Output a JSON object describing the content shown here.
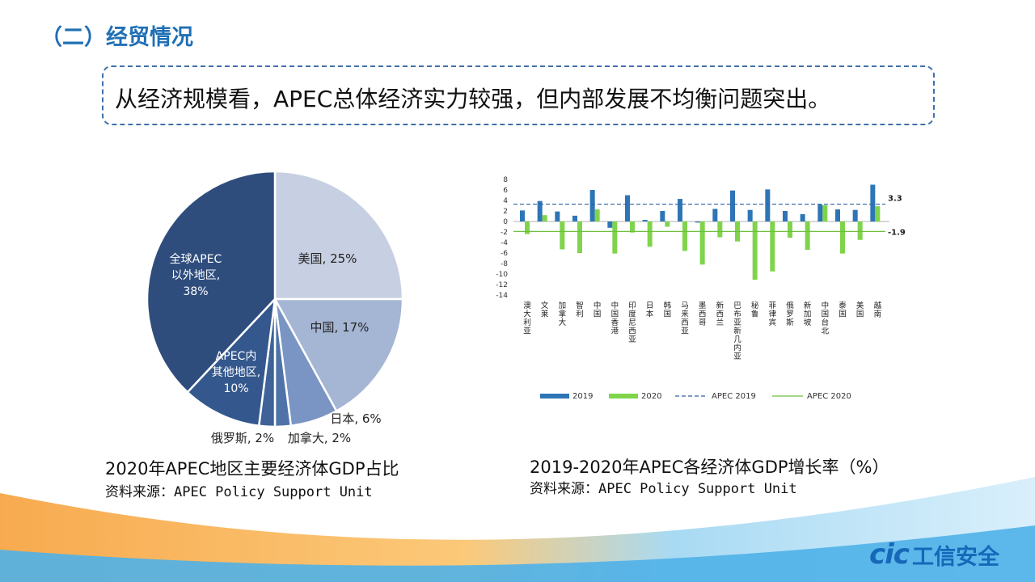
{
  "header": {
    "title": "（二）经贸情况"
  },
  "banner": {
    "text": "从经济规模看，APEC总体经济实力较强，但内部发展不均衡问题突出。"
  },
  "pie_caption": "2020年APEC地区主要经济体GDP占比",
  "pie_source": "资料来源：APEC Policy Support Unit",
  "bar_caption": "2019-2020年APEC各经济体GDP增长率（%）",
  "bar_source": "资料来源：APEC Policy Support Unit",
  "logo": {
    "mark": "cic",
    "text": "工信安全"
  },
  "colors": {
    "title": "#1f6fb5",
    "c2019": "#2e75b6",
    "c2020": "#7fd44b"
  },
  "chart_data": [
    {
      "type": "pie",
      "title": "2020年APEC地区主要经济体GDP占比",
      "slices": [
        {
          "label": "美国, 25%",
          "value": 25,
          "color": "#c7cfe2"
        },
        {
          "label": "中国, 17%",
          "value": 17,
          "color": "#a5b5d4"
        },
        {
          "label": "日本, 6%",
          "value": 6,
          "color": "#7a95c4"
        },
        {
          "label": "加拿大, 2%",
          "value": 2,
          "color": "#4f73a8"
        },
        {
          "label": "俄罗斯, 2%",
          "value": 2,
          "color": "#3f6398"
        },
        {
          "label": "APEC内其他地区, 10%",
          "value": 10,
          "color": "#34588d"
        },
        {
          "label": "全球APEC以外地区, 38%",
          "value": 38,
          "color": "#2e4d7d"
        }
      ]
    },
    {
      "type": "bar",
      "title": "2019-2020年APEC各经济体GDP增长率（%）",
      "categories": [
        "澳大利亚",
        "文莱",
        "加拿大",
        "智利",
        "中国",
        "中国香港",
        "印度尼西亚",
        "日本",
        "韩国",
        "马来西亚",
        "墨西哥",
        "新西兰",
        "巴布亚新几内亚",
        "秘鲁",
        "菲律宾",
        "俄罗斯",
        "新加坡",
        "中国台北",
        "泰国",
        "美国",
        "越南"
      ],
      "series": [
        {
          "name": "2019",
          "values": [
            2.1,
            3.9,
            1.9,
            1.1,
            6.0,
            -1.2,
            5.0,
            0.3,
            2.0,
            4.3,
            -0.2,
            2.4,
            5.9,
            2.2,
            6.1,
            2.0,
            1.4,
            3.2,
            2.3,
            2.2,
            7.0
          ]
        },
        {
          "name": "2020",
          "values": [
            -2.4,
            1.2,
            -5.3,
            -6.0,
            2.3,
            -6.1,
            -2.1,
            -4.8,
            -1.0,
            -5.6,
            -8.2,
            -3.0,
            -3.8,
            -11.1,
            -9.5,
            -3.1,
            -5.4,
            3.1,
            -6.1,
            -3.5,
            2.9
          ]
        }
      ],
      "reference_lines": [
        {
          "name": "APEC 2019",
          "value": 3.3,
          "label": "3.3"
        },
        {
          "name": "APEC 2020",
          "value": -1.9,
          "label": "-1.9"
        }
      ],
      "ylim": [
        -14,
        8
      ],
      "yticks": [
        "8",
        "6",
        "4",
        "2",
        "0",
        "-2",
        "-4",
        "-6",
        "-8",
        "-10",
        "-12",
        "-14"
      ],
      "legend": [
        "2019",
        "2020",
        "APEC 2019",
        "APEC 2020"
      ]
    }
  ]
}
